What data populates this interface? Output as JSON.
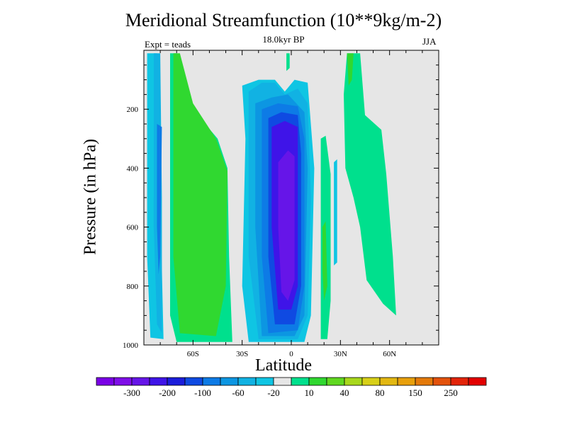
{
  "chart_data": {
    "type": "contour",
    "title": "Meridional Streamfunction (10**9kg/m-2)",
    "subtitle": "18.0kyr BP",
    "experiment": "Expt = teads",
    "season": "JJA",
    "xlabel": "Latitude",
    "ylabel": "Pressure (in hPa)",
    "xlim": [
      -90,
      90
    ],
    "ylim": [
      0,
      1000
    ],
    "x_ticks": [
      {
        "value": -60,
        "label": "60S"
      },
      {
        "value": -30,
        "label": "30S"
      },
      {
        "value": 0,
        "label": "0"
      },
      {
        "value": 30,
        "label": "30N"
      },
      {
        "value": 60,
        "label": "60N"
      }
    ],
    "y_ticks": [
      {
        "value": 200,
        "label": "200"
      },
      {
        "value": 400,
        "label": "400"
      },
      {
        "value": 600,
        "label": "600"
      },
      {
        "value": 800,
        "label": "800"
      },
      {
        "value": 1000,
        "label": "1000"
      }
    ],
    "colorbar": {
      "colors": [
        "#7a00e6",
        "#7f0ee8",
        "#6615e8",
        "#3f14e8",
        "#1b1ddb",
        "#0f4ae2",
        "#0d7be6",
        "#0c96e2",
        "#11b2e3",
        "#0fc5e3",
        "#e6e6e6",
        "#00e08d",
        "#30d830",
        "#60d820",
        "#a8d81c",
        "#d8d018",
        "#e3b812",
        "#e8a00c",
        "#e47a0a",
        "#e3520b",
        "#e32409",
        "#e30000"
      ],
      "labels": [
        {
          "after": 1,
          "text": "-300"
        },
        {
          "after": 3,
          "text": "-200"
        },
        {
          "after": 5,
          "text": "-100"
        },
        {
          "after": 7,
          "text": "-60"
        },
        {
          "after": 9,
          "text": "-20"
        },
        {
          "after": 11,
          "text": "10"
        },
        {
          "after": 13,
          "text": "40"
        },
        {
          "after": 15,
          "text": "80"
        },
        {
          "after": 17,
          "text": "150"
        },
        {
          "after": 19,
          "text": "250"
        }
      ]
    },
    "background_color": "#e6e6e6",
    "contour_regions": [
      {
        "name": "sh-polar-cell-outer",
        "level": -20,
        "color": "#0fc5e3",
        "outline": [
          [
            -88,
            10
          ],
          [
            -82,
            10
          ],
          [
            -80,
            500
          ],
          [
            -78,
            980
          ],
          [
            -86,
            975
          ],
          [
            -88,
            700
          ]
        ]
      },
      {
        "name": "sh-polar-cell-mid",
        "level": -30,
        "color": "#11b2e3",
        "outline": [
          [
            -84,
            10
          ],
          [
            -80,
            10
          ],
          [
            -79,
            500
          ],
          [
            -79,
            960
          ],
          [
            -82,
            930
          ],
          [
            -84,
            600
          ]
        ]
      },
      {
        "name": "sh-polar-cell-core",
        "level": -60,
        "color": "#0d7be6",
        "outline": [
          [
            -82,
            250
          ],
          [
            -79,
            260
          ],
          [
            -80,
            700
          ],
          [
            -81,
            760
          ],
          [
            -82,
            600
          ]
        ]
      },
      {
        "name": "sh-ferrel-cell-outer",
        "level": 10,
        "color": "#00e08d",
        "outline": [
          [
            -74,
            10
          ],
          [
            -70,
            10
          ],
          [
            -60,
            200
          ],
          [
            -45,
            300
          ],
          [
            -39,
            400
          ],
          [
            -38,
            700
          ],
          [
            -36,
            990
          ],
          [
            -70,
            990
          ],
          [
            -74,
            900
          ]
        ]
      },
      {
        "name": "sh-ferrel-cell-core",
        "level": 20,
        "color": "#30d830",
        "outline": [
          [
            -72,
            10
          ],
          [
            -68,
            10
          ],
          [
            -60,
            180
          ],
          [
            -46,
            300
          ],
          [
            -39,
            410
          ],
          [
            -40,
            800
          ],
          [
            -46,
            970
          ],
          [
            -68,
            960
          ],
          [
            -72,
            700
          ]
        ]
      },
      {
        "name": "hadley-cell-outer",
        "level": -20,
        "color": "#0fc5e3",
        "outline": [
          [
            -30,
            120
          ],
          [
            -20,
            100
          ],
          [
            -10,
            100
          ],
          [
            -4,
            140
          ],
          [
            2,
            100
          ],
          [
            10,
            110
          ],
          [
            14,
            400
          ],
          [
            12,
            900
          ],
          [
            8,
            990
          ],
          [
            -26,
            990
          ],
          [
            -30,
            800
          ],
          [
            -28,
            300
          ]
        ]
      },
      {
        "name": "hadley-cell-ring1",
        "level": -30,
        "color": "#11b2e3",
        "outline": [
          [
            -26,
            140
          ],
          [
            -18,
            110
          ],
          [
            -10,
            110
          ],
          [
            -4,
            150
          ],
          [
            4,
            130
          ],
          [
            10,
            180
          ],
          [
            12,
            500
          ],
          [
            10,
            900
          ],
          [
            4,
            980
          ],
          [
            -20,
            980
          ],
          [
            -26,
            700
          ]
        ]
      },
      {
        "name": "hadley-cell-ring2",
        "level": -60,
        "color": "#0c96e2",
        "outline": [
          [
            -22,
            180
          ],
          [
            -12,
            160
          ],
          [
            -2,
            150
          ],
          [
            8,
            210
          ],
          [
            10,
            400
          ],
          [
            8,
            900
          ],
          [
            2,
            970
          ],
          [
            -18,
            970
          ],
          [
            -22,
            600
          ]
        ]
      },
      {
        "name": "hadley-cell-ring3",
        "level": -100,
        "color": "#0d7be6",
        "outline": [
          [
            -18,
            200
          ],
          [
            -8,
            180
          ],
          [
            4,
            190
          ],
          [
            8,
            300
          ],
          [
            8,
            800
          ],
          [
            4,
            950
          ],
          [
            -14,
            960
          ],
          [
            -18,
            700
          ]
        ]
      },
      {
        "name": "hadley-cell-ring4",
        "level": -150,
        "color": "#0f4ae2",
        "outline": [
          [
            -14,
            230
          ],
          [
            -6,
            210
          ],
          [
            4,
            220
          ],
          [
            6,
            350
          ],
          [
            6,
            800
          ],
          [
            2,
            930
          ],
          [
            -10,
            930
          ],
          [
            -14,
            700
          ]
        ]
      },
      {
        "name": "hadley-cell-ring5",
        "level": -200,
        "color": "#3f14e8",
        "outline": [
          [
            -12,
            260
          ],
          [
            -4,
            240
          ],
          [
            4,
            260
          ],
          [
            4,
            500
          ],
          [
            4,
            800
          ],
          [
            0,
            880
          ],
          [
            -8,
            880
          ],
          [
            -12,
            600
          ]
        ]
      },
      {
        "name": "hadley-cell-core",
        "level": -250,
        "color": "#6615e8",
        "outline": [
          [
            -8,
            380
          ],
          [
            -2,
            340
          ],
          [
            2,
            360
          ],
          [
            2,
            600
          ],
          [
            2,
            780
          ],
          [
            -2,
            850
          ],
          [
            -6,
            820
          ],
          [
            -8,
            600
          ]
        ]
      },
      {
        "name": "nh-positive-cell",
        "level": 10,
        "color": "#00e08d",
        "outline": [
          [
            34,
            10
          ],
          [
            42,
            10
          ],
          [
            45,
            220
          ],
          [
            55,
            270
          ],
          [
            58,
            420
          ],
          [
            62,
            700
          ],
          [
            64,
            900
          ],
          [
            56,
            860
          ],
          [
            46,
            780
          ],
          [
            42,
            600
          ],
          [
            38,
            500
          ],
          [
            33,
            400
          ],
          [
            32,
            150
          ]
        ]
      },
      {
        "name": "nh-positive-cell-core",
        "level": 20,
        "color": "#30d830",
        "outline": [
          [
            34,
            10
          ],
          [
            38,
            10
          ],
          [
            37,
            100
          ],
          [
            35,
            120
          ]
        ]
      },
      {
        "name": "tropical-positive-strip",
        "level": 10,
        "color": "#00e08d",
        "outline": [
          [
            18,
            300
          ],
          [
            21,
            290
          ],
          [
            24,
            420
          ],
          [
            24,
            850
          ],
          [
            22,
            980
          ],
          [
            18,
            980
          ],
          [
            18,
            800
          ]
        ]
      },
      {
        "name": "tropical-green-streak",
        "level": 20,
        "color": "#30d830",
        "outline": [
          [
            19,
            600
          ],
          [
            21,
            580
          ],
          [
            22,
            800
          ],
          [
            20,
            850
          ],
          [
            19,
            750
          ]
        ]
      },
      {
        "name": "upper-positive-sliver",
        "level": 10,
        "color": "#00e08d",
        "outline": [
          [
            -3,
            10
          ],
          [
            -1,
            10
          ],
          [
            -1,
            60
          ],
          [
            -3,
            70
          ]
        ]
      },
      {
        "name": "nh-negative-sliver",
        "level": -20,
        "color": "#0fc5e3",
        "outline": [
          [
            26,
            380
          ],
          [
            28,
            370
          ],
          [
            28,
            720
          ],
          [
            26,
            730
          ]
        ]
      }
    ]
  }
}
